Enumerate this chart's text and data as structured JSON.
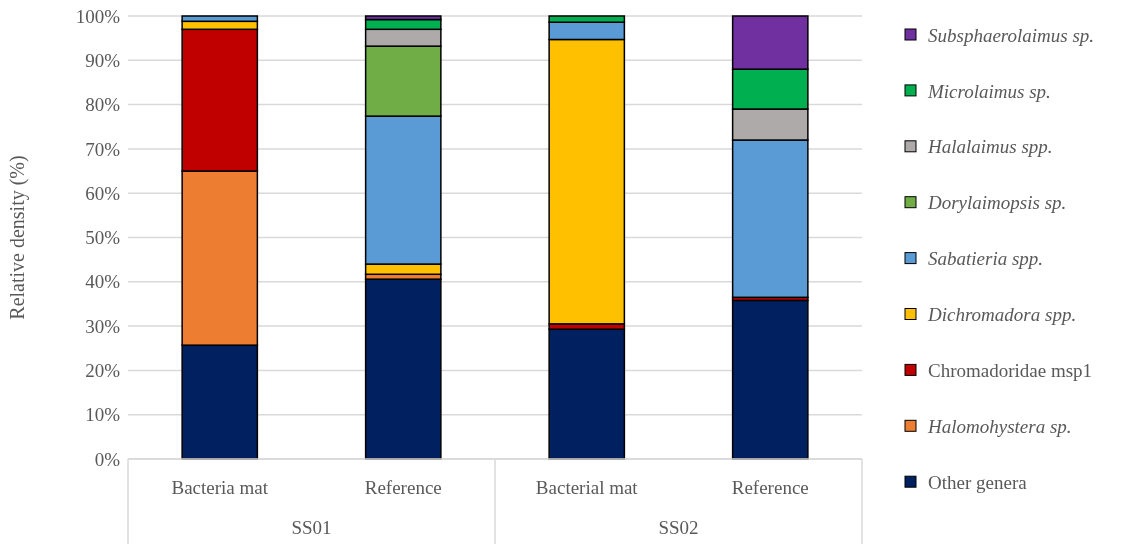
{
  "chart_data": {
    "type": "bar",
    "stacked": true,
    "ylabel": "Relative density (%)",
    "categories": [
      "Bacteria mat",
      "Reference",
      "Bacterial mat",
      "Reference"
    ],
    "annotations": [
      "SS01",
      "SS02"
    ],
    "ylim": [
      0,
      100
    ],
    "yticks": [
      {
        "value": 0,
        "label": "0%"
      },
      {
        "value": 10,
        "label": "10%"
      },
      {
        "value": 20,
        "label": "20%"
      },
      {
        "value": 30,
        "label": "30%"
      },
      {
        "value": 40,
        "label": "40%"
      },
      {
        "value": 50,
        "label": "50%"
      },
      {
        "value": 60,
        "label": "60%"
      },
      {
        "value": 70,
        "label": "70%"
      },
      {
        "value": 80,
        "label": "80%"
      },
      {
        "value": 90,
        "label": "90%"
      },
      {
        "value": 100,
        "label": "100%"
      }
    ],
    "grid": "y",
    "legend": "right",
    "series": [
      {
        "name": "Other genera",
        "color": "#002060",
        "values": [
          25.7,
          40.6,
          29.3,
          35.8
        ]
      },
      {
        "name": "Halomohystera sp.",
        "color": "#ed7d31",
        "values": [
          39.3,
          1.1,
          0,
          0
        ]
      },
      {
        "name": "Chromadoridae msp1",
        "color": "#c00000",
        "values": [
          32,
          0,
          1.2,
          0.7
        ]
      },
      {
        "name": "Dichromadora spp.",
        "color": "#ffc000",
        "values": [
          1.8,
          2.3,
          64.2,
          0
        ]
      },
      {
        "name": "Sabatieria spp.",
        "color": "#5b9bd5",
        "values": [
          1.2,
          33.4,
          3.9,
          35.5
        ]
      },
      {
        "name": "Dorylaimopsis sp.",
        "color": "#70ad47",
        "values": [
          0,
          15.8,
          0,
          0
        ]
      },
      {
        "name": "Halalaimus spp.",
        "color": "#aeaaaa",
        "values": [
          0,
          3.8,
          0,
          7
        ]
      },
      {
        "name": "Microlaimus sp.",
        "color": "#00b050",
        "values": [
          0,
          2.2,
          1.4,
          9
        ]
      },
      {
        "name": "Subsphaerolaimus sp.",
        "color": "#7030a0",
        "values": [
          0,
          0.8,
          0,
          12
        ]
      }
    ]
  }
}
